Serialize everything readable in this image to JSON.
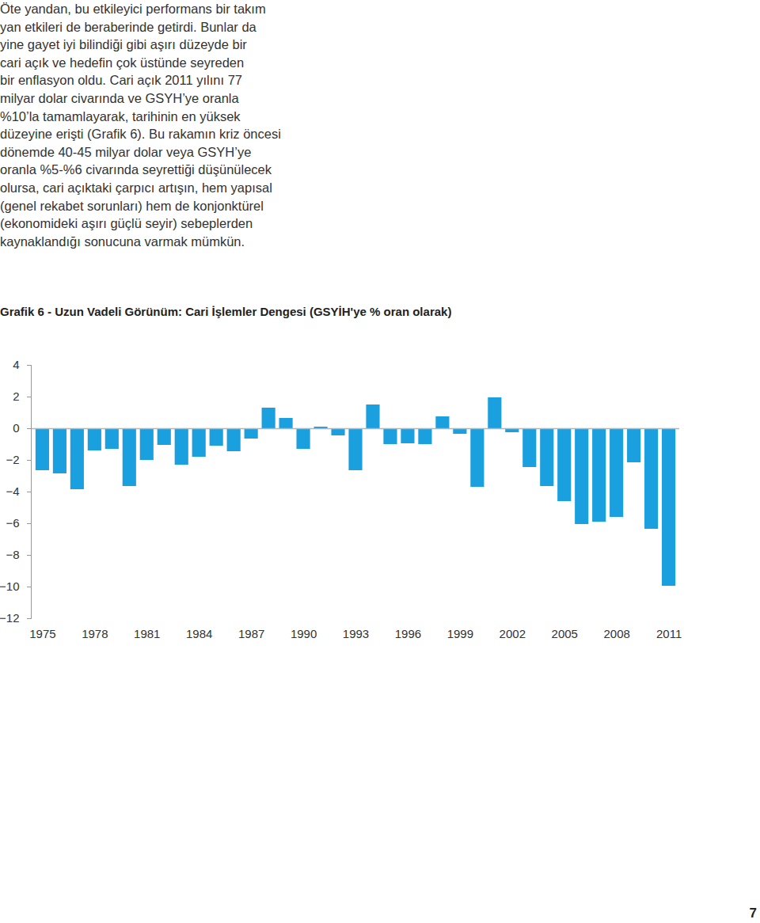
{
  "text_lines": [
    "Öte yandan, bu etkileyici performans bir takım",
    "yan etkileri de beraberinde getirdi. Bunlar da",
    "yine gayet iyi bilindiği gibi aşırı düzeyde bir",
    "cari açık ve hedefin çok üstünde seyreden",
    "bir enflasyon oldu. Cari açık 2011 yılını 77",
    "milyar dolar civarında ve GSYH’ye oranla",
    "%10’la tamamlayarak, tarihinin en yüksek",
    "düzeyine erişti (Grafik 6). Bu rakamın kriz öncesi",
    "dönemde 40-45 milyar dolar veya GSYH’ye",
    "oranla %5-%6 civarında seyrettiği düşünülecek",
    "olursa, cari açıktaki çarpıcı artışın, hem yapısal",
    "(genel rekabet sorunları) hem de konjonktürel",
    "(ekonomideki aşırı güçlü seyir) sebeplerden",
    "kaynaklandığı sonucuna varmak mümkün."
  ],
  "chart_data": {
    "type": "bar",
    "title": "Grafik 6 - Uzun Vadeli Görünüm: Cari İşlemler Dengesi (GSYİH'ye % oran olarak)",
    "categories": [
      "1975",
      null,
      null,
      "1978",
      null,
      null,
      "1981",
      null,
      null,
      "1984",
      null,
      null,
      "1987",
      null,
      null,
      "1990",
      null,
      null,
      "1993",
      null,
      null,
      "1996",
      null,
      null,
      "1999",
      null,
      null,
      "2002",
      null,
      null,
      "2005",
      null,
      null,
      "2008",
      null,
      null,
      "2011"
    ],
    "values": [
      -2.65,
      -2.85,
      -3.85,
      -1.4,
      -1.3,
      -3.65,
      -2.0,
      -1.05,
      -2.3,
      -1.8,
      -1.1,
      -1.45,
      -0.65,
      1.3,
      0.65,
      -1.3,
      0.1,
      -0.45,
      -2.65,
      1.5,
      -1.0,
      -0.95,
      -1.0,
      0.75,
      -0.35,
      -3.7,
      1.95,
      -0.25,
      -2.45,
      -3.65,
      -4.6,
      -6.05,
      -5.9,
      -5.6,
      -2.15,
      -6.35,
      -9.95
    ],
    "color": "#1a9fdf",
    "ylim": [
      -12,
      4
    ],
    "yticks": [
      -12,
      -10,
      -8,
      -6,
      -4,
      -2,
      0,
      2,
      4
    ],
    "grid": false
  },
  "page_number": "7"
}
